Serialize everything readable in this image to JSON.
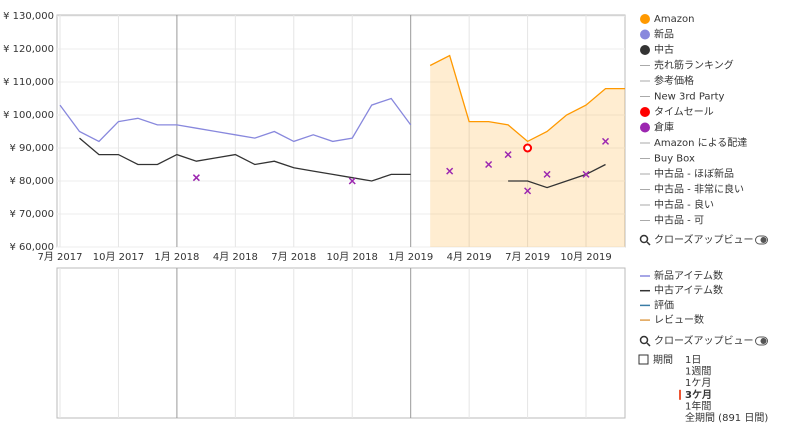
{
  "chart_data": {
    "type": "line",
    "x": [
      "2017-07",
      "2017-08",
      "2017-09",
      "2017-10",
      "2017-11",
      "2017-12",
      "2018-01",
      "2018-02",
      "2018-03",
      "2018-04",
      "2018-05",
      "2018-06",
      "2018-07",
      "2018-08",
      "2018-09",
      "2018-10",
      "2018-11",
      "2018-12",
      "2019-01",
      "2019-02",
      "2019-03",
      "2019-04",
      "2019-05",
      "2019-06",
      "2019-07",
      "2019-08",
      "2019-09",
      "2019-10",
      "2019-11",
      "2019-12"
    ],
    "series": [
      {
        "name": "Amazon",
        "color": "#ff9900",
        "area": true,
        "values": [
          null,
          null,
          null,
          null,
          null,
          null,
          null,
          null,
          null,
          null,
          null,
          null,
          null,
          null,
          null,
          null,
          null,
          null,
          null,
          115000,
          118000,
          98000,
          98000,
          97000,
          92000,
          95000,
          100000,
          103000,
          108000,
          108000
        ]
      },
      {
        "name": "新品",
        "color": "#8888dd",
        "values": [
          103000,
          95000,
          92000,
          98000,
          99000,
          97000,
          97000,
          96000,
          95000,
          94000,
          93000,
          95000,
          92000,
          94000,
          92000,
          93000,
          103000,
          105000,
          97000,
          null,
          null,
          null,
          null,
          null,
          null,
          null,
          null,
          null,
          null,
          null
        ]
      },
      {
        "name": "中古",
        "color": "#333333",
        "values": [
          null,
          93000,
          88000,
          88000,
          85000,
          85000,
          88000,
          86000,
          87000,
          88000,
          85000,
          86000,
          84000,
          83000,
          82000,
          81000,
          80000,
          82000,
          82000,
          null,
          null,
          null,
          null,
          80000,
          80000,
          78000,
          80000,
          82000,
          85000,
          null
        ]
      },
      {
        "name": "タイムセール",
        "color": "#ff0000",
        "marker": "circle",
        "values": [
          null,
          null,
          null,
          null,
          null,
          null,
          null,
          null,
          null,
          null,
          null,
          null,
          null,
          null,
          null,
          null,
          null,
          null,
          null,
          null,
          null,
          null,
          null,
          null,
          90000,
          null,
          null,
          null,
          null,
          null
        ]
      },
      {
        "name": "倉庫",
        "color": "#9c27b0",
        "marker": "x",
        "values": [
          null,
          null,
          null,
          null,
          null,
          null,
          null,
          81000,
          null,
          null,
          null,
          null,
          null,
          null,
          null,
          80000,
          null,
          null,
          null,
          null,
          83000,
          null,
          85000,
          88000,
          77000,
          82000,
          null,
          82000,
          92000,
          null
        ]
      }
    ],
    "xlim": [
      "2017-07",
      "2019-12"
    ],
    "xticks": [
      {
        "value": "2017-07",
        "label": "7月 2017"
      },
      {
        "value": "2017-10",
        "label": "10月 2017"
      },
      {
        "value": "2018-01",
        "label": "1月 2018"
      },
      {
        "value": "2018-04",
        "label": "4月 2018"
      },
      {
        "value": "2018-07",
        "label": "7月 2018"
      },
      {
        "value": "2018-10",
        "label": "10月 2018"
      },
      {
        "value": "2019-01",
        "label": "1月 2019"
      },
      {
        "value": "2019-04",
        "label": "4月 2019"
      },
      {
        "value": "2019-07",
        "label": "7月 2019"
      },
      {
        "value": "2019-10",
        "label": "10月 2019"
      }
    ],
    "ylim": [
      60000,
      130000
    ],
    "yticks": [
      {
        "value": 60000,
        "label": "¥ 60,000"
      },
      {
        "value": 70000,
        "label": "¥ 70,000"
      },
      {
        "value": 80000,
        "label": "¥ 80,000"
      },
      {
        "value": 90000,
        "label": "¥ 90,000"
      },
      {
        "value": 100000,
        "label": "¥ 100,000"
      },
      {
        "value": 110000,
        "label": "¥ 110,000"
      },
      {
        "value": 120000,
        "label": "¥ 120,000"
      },
      {
        "value": 130000,
        "label": "¥ 130,000"
      }
    ],
    "grid": true,
    "legend_extra_top": [
      "売れ筋ランキング",
      "参考価格",
      "New 3rd Party"
    ],
    "legend_extra_bottom": [
      "Amazon による配達",
      "Buy Box",
      "中古品 - ほぼ新品",
      "中古品 - 非常に良い",
      "中古品 - 良い",
      "中古品 - 可"
    ],
    "closeup": "クローズアップビュー"
  },
  "lower_panel": {
    "legend": [
      {
        "name": "新品アイテム数",
        "color": "#8888dd"
      },
      {
        "name": "中古アイテム数",
        "color": "#333333"
      },
      {
        "name": "評価",
        "color": "#3a7ca5"
      },
      {
        "name": "レビュー数",
        "color": "#e0a050"
      }
    ],
    "closeup": "クローズアップビュー",
    "period_label": "期間",
    "periods": [
      "1日",
      "1週間",
      "1ケ月",
      "3ケ月",
      "1年間",
      "全期間 (891 日間)"
    ],
    "selected_period": 3
  }
}
